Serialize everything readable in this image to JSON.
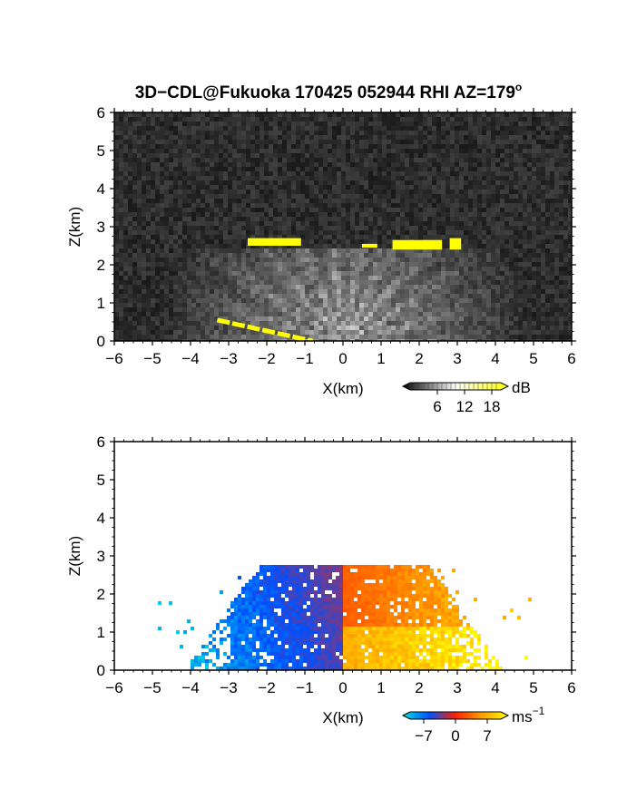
{
  "title": "3D−CDL@Fukuoka 170425 052944 RHI AZ=179",
  "title_superscript": "o",
  "chart_data": [
    {
      "type": "heatmap",
      "panel": "backscatter",
      "xlabel": "X(km)",
      "ylabel": "Z(km)",
      "xlim": [
        -6,
        6
      ],
      "ylim": [
        0,
        6
      ],
      "xticks": [
        "−6",
        "−5",
        "−4",
        "−3",
        "−2",
        "−1",
        "0",
        "1",
        "2",
        "3",
        "4",
        "5",
        "6"
      ],
      "yticks": [
        "0",
        "1",
        "2",
        "3",
        "4",
        "5",
        "6"
      ],
      "colorbar": {
        "unit": "dB",
        "ticks": [
          "6",
          "12",
          "18"
        ],
        "tick_values": [
          6,
          12,
          18
        ],
        "range": [
          0,
          20
        ],
        "colors": [
          "#000000",
          "#ffffff",
          "#ffff00"
        ]
      },
      "features": [
        {
          "kind": "cloud-base",
          "color": "#ffff00",
          "segments": [
            [
              -2.5,
              -1.1,
              2.5,
              2.7
            ],
            [
              0.5,
              0.9,
              2.45,
              2.55
            ],
            [
              1.3,
              2.6,
              2.4,
              2.65
            ],
            [
              2.8,
              3.1,
              2.4,
              2.7
            ]
          ]
        },
        {
          "kind": "ground-return",
          "color": "#ffff00",
          "segments": [
            [
              -3.3,
              -0.8,
              0.0,
              0.55
            ]
          ]
        }
      ]
    },
    {
      "type": "heatmap",
      "panel": "doppler-velocity",
      "xlabel": "X(km)",
      "ylabel": "Z(km)",
      "xlim": [
        -6,
        6
      ],
      "ylim": [
        0,
        6
      ],
      "xticks": [
        "−6",
        "−5",
        "−4",
        "−3",
        "−2",
        "−1",
        "0",
        "1",
        "2",
        "3",
        "4",
        "5",
        "6"
      ],
      "yticks": [
        "0",
        "1",
        "2",
        "3",
        "4",
        "5",
        "6"
      ],
      "colorbar": {
        "unit": "ms",
        "unit_exponent": "−1",
        "ticks": [
          "−7",
          "0",
          "7"
        ],
        "tick_values": [
          -7,
          0,
          7
        ],
        "range": [
          -10,
          10
        ],
        "colors": [
          "#00e0e0",
          "#0050ff",
          "#ff2000",
          "#ffa000",
          "#ffff00"
        ]
      },
      "features": [
        {
          "kind": "velocity-field",
          "x_range": [
            -4.3,
            5.0
          ],
          "z_range": [
            0.0,
            2.85
          ],
          "negative_side": "x<0",
          "positive_side": "x>0"
        }
      ]
    }
  ]
}
